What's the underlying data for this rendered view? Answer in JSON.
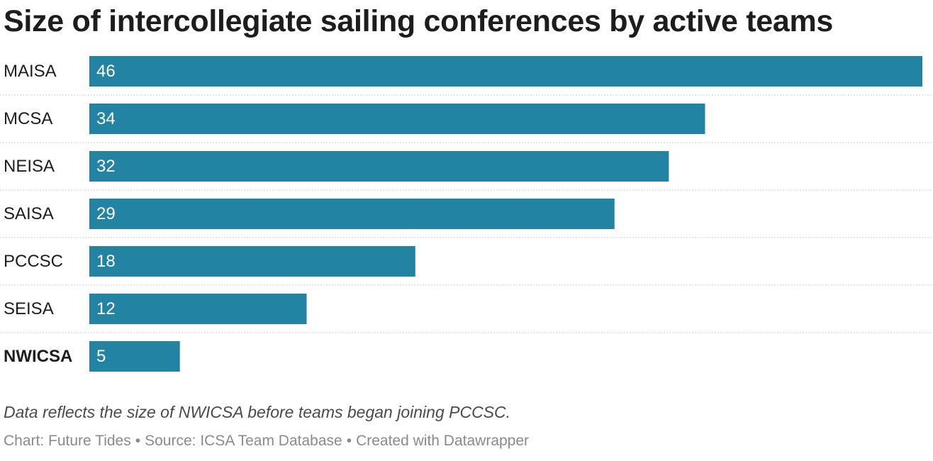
{
  "chart_data": {
    "type": "bar",
    "orientation": "horizontal",
    "title": "Size of intercollegiate sailing conferences by active teams",
    "categories": [
      "MAISA",
      "MCSA",
      "NEISA",
      "SAISA",
      "PCCSC",
      "SEISA",
      "NWICSA"
    ],
    "values": [
      46,
      34,
      32,
      29,
      18,
      12,
      5
    ],
    "highlighted_category": "NWICSA",
    "xlim": [
      0,
      46
    ],
    "bar_color": "#2383a3",
    "xlabel": "",
    "ylabel": ""
  },
  "note": "Data reflects the size of NWICSA before teams began joining PCCSC.",
  "footer": {
    "chart_credit": "Chart: Future Tides",
    "source": "Source: ICSA Team Database",
    "tool": "Created with Datawrapper",
    "separator": "•"
  }
}
